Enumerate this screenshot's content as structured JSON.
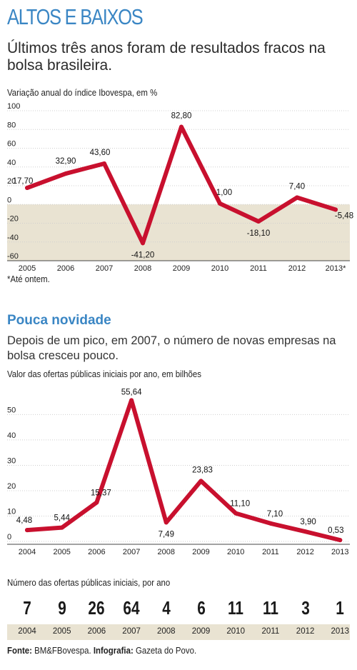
{
  "header": {
    "title": "ALTOS E BAIXOS",
    "subtitle": "Últimos três anos foram de resultados fracos na bolsa brasileira."
  },
  "chart1": {
    "label": "Variação anual do índice Ibovespa, em %",
    "footnote": "*Até ontem."
  },
  "section2": {
    "heading": "Pouca novidade",
    "description": "Depois de um pico, em 2007, o número de novas empresas na bolsa cresceu pouco.",
    "chart_label": "Valor das ofertas públicas iniciais por ano, em bilhões"
  },
  "count_section": {
    "label": "Número das ofertas públicas iniciais, por ano",
    "years": [
      "2004",
      "2005",
      "2006",
      "2007",
      "2008",
      "2009",
      "2010",
      "2011",
      "2012",
      "2013"
    ],
    "counts": [
      "7",
      "9",
      "26",
      "64",
      "4",
      "6",
      "11",
      "11",
      "3",
      "1"
    ]
  },
  "source": {
    "label": "Fonte:",
    "value": "BM&FBovespa.",
    "infografia_label": "Infografia:",
    "infografia_value": "Gazeta do Povo."
  },
  "colors": {
    "line": "#c8102e",
    "accent": "#3a86c4",
    "band": "#e9e3d2"
  },
  "chart_data": [
    {
      "type": "line",
      "x": [
        "2005",
        "2006",
        "2007",
        "2008",
        "2009",
        "2010",
        "2011",
        "2012",
        "2013*"
      ],
      "values": [
        17.7,
        32.9,
        43.6,
        -41.2,
        82.8,
        1.0,
        -18.1,
        7.4,
        -5.48
      ],
      "data_labels": [
        "17,70",
        "32,90",
        "43,60",
        "-41,20",
        "82,80",
        "1,00",
        "-18,10",
        "7,40",
        "-5,48"
      ],
      "yticks": [
        "100",
        "80",
        "60",
        "40",
        "20",
        "0",
        "-20",
        "-40",
        "-60"
      ],
      "ytick_values": [
        100,
        80,
        60,
        40,
        20,
        0,
        -20,
        -40,
        -60
      ],
      "ylim": [
        -60,
        100
      ],
      "negative_band": true
    },
    {
      "type": "line",
      "x": [
        "2004",
        "2005",
        "2006",
        "2007",
        "2008",
        "2009",
        "2010",
        "2011",
        "2012",
        "2013"
      ],
      "values": [
        4.48,
        5.44,
        15.37,
        55.64,
        7.49,
        23.83,
        11.1,
        7.1,
        3.9,
        0.53
      ],
      "data_labels": [
        "4,48",
        "5,44",
        "15,37",
        "55,64",
        "7,49",
        "23,83",
        "11,10",
        "7,10",
        "3,90",
        "0,53"
      ],
      "yticks": [
        "50",
        "40",
        "30",
        "20",
        "10",
        "0"
      ],
      "ytick_values": [
        50,
        40,
        30,
        20,
        10,
        0
      ],
      "ylim": [
        0,
        58
      ]
    }
  ]
}
